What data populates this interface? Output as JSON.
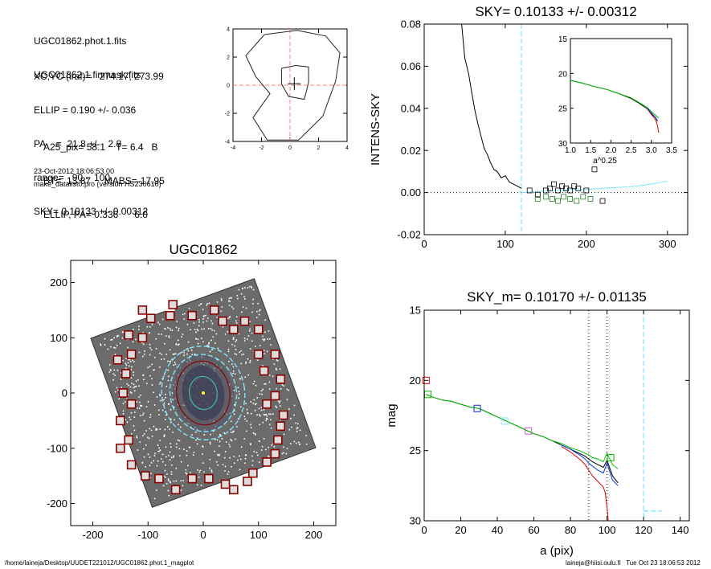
{
  "header": {
    "lines_a": [
      "UGC01862.phot.1.fits",
      "UGC01862.1.finmask.fits"
    ],
    "lines_b": [
      "XC,YC (iraf)=   274.17, 273.99",
      "ELLIP = 0.190 +/- 0.036",
      "PA    =  21.8 +/-   2.8",
      "range=   90.-  100.",
      "SKY= 0.10133 +/- 0.00312"
    ],
    "lines_c": [
      "A25_pix= 58.1    T= 6.4   B",
      "BT=  13.87     MABS=-17.95",
      "ELLIP, PA= 0.336      6.0"
    ],
    "date_line": "23-Oct-2012 18:06:53.00",
    "program_line": "make_datalist0.pro (version HS230610)"
  },
  "footer": {
    "path": "/home/laineja/Desktop/UUDET221012/UGC01862.phot.1_magplot",
    "user_time": "laineja@hiisi.oulu.fi   Tue Oct 23 18:06:53 2012"
  },
  "colors": {
    "sky_line": "#7fe6ff",
    "contour_red": "#ff8080",
    "mask_box": "#8b0000",
    "series_red": "#e00000",
    "series_blue": "#0030e0",
    "series_green": "#00c000"
  },
  "chart_data": [
    {
      "id": "contour",
      "type": "contour",
      "title": "",
      "xlim": [
        -4,
        4
      ],
      "ylim": [
        -4,
        4
      ],
      "xticks": [
        "-4",
        "-2",
        "0",
        "2",
        "4"
      ],
      "yticks": [
        "-4",
        "-2",
        "0",
        "2",
        "4"
      ],
      "contours": [
        [
          [
            -1.8,
            3.6
          ],
          [
            0.5,
            3.9
          ],
          [
            2.5,
            3.5
          ],
          [
            3.5,
            2.3
          ],
          [
            3.2,
            0.3
          ],
          [
            2.3,
            -2.2
          ],
          [
            0.6,
            -3.9
          ],
          [
            -1.6,
            -3.9
          ],
          [
            -2.6,
            -2.3
          ],
          [
            -1.4,
            -0.6
          ],
          [
            -2.4,
            0.6
          ],
          [
            -3.1,
            2.1
          ],
          [
            -1.8,
            3.6
          ]
        ],
        [
          [
            -0.6,
            1.2
          ],
          [
            0.4,
            1.4
          ],
          [
            1.3,
            1.3
          ],
          [
            1.3,
            0.2
          ],
          [
            1.0,
            -1.0
          ],
          [
            -0.1,
            -0.8
          ],
          [
            -0.6,
            0.1
          ],
          [
            -0.6,
            1.2
          ]
        ]
      ],
      "center": [
        0.3,
        0.1
      ]
    },
    {
      "id": "sky",
      "type": "line",
      "title": "SKY= 0.10133 +/- 0.00312",
      "xlabel": "",
      "ylabel": "INTENS-SKY",
      "xlim": [
        0,
        325
      ],
      "ylim": [
        -0.02,
        0.08
      ],
      "xticks": [
        "0",
        "100",
        "200",
        "300"
      ],
      "yticks": [
        "-0.02",
        "0.00",
        "0.02",
        "0.04",
        "0.06",
        "0.08"
      ],
      "sky_marker_x": 120,
      "series": [
        {
          "color": "#000000",
          "x": [
            45,
            50,
            55,
            58,
            62,
            66,
            70,
            74,
            78,
            82,
            86,
            90,
            95,
            100,
            105,
            110,
            115,
            120
          ],
          "y": [
            0.085,
            0.064,
            0.056,
            0.049,
            0.04,
            0.033,
            0.027,
            0.021,
            0.018,
            0.014,
            0.011,
            0.01,
            0.007,
            0.008,
            0.005,
            0.004,
            0.003,
            0.002
          ]
        },
        {
          "color": "#7fe6ff",
          "x": [
            120,
            140,
            160,
            180,
            200,
            220,
            240,
            260,
            280,
            300
          ],
          "y": [
            0,
            0.0005,
            0.001,
            0.0015,
            0.0015,
            0.002,
            0.0025,
            0.003,
            0.004,
            0.0055
          ]
        }
      ],
      "points_black": [
        [
          130,
          0.001
        ],
        [
          140,
          -0.001
        ],
        [
          150,
          0.001
        ],
        [
          155,
          0.002
        ],
        [
          160,
          0.004
        ],
        [
          165,
          0.001
        ],
        [
          170,
          0.003
        ],
        [
          175,
          0.002
        ],
        [
          180,
          0.001
        ],
        [
          185,
          0.003
        ],
        [
          190,
          0.002
        ],
        [
          200,
          0.001
        ],
        [
          210,
          0.011
        ],
        [
          220,
          -0.004
        ]
      ],
      "points_green": [
        [
          140,
          -0.003
        ],
        [
          150,
          -0.002
        ],
        [
          158,
          -0.003
        ],
        [
          165,
          -0.004
        ],
        [
          172,
          -0.002
        ],
        [
          180,
          -0.003
        ],
        [
          188,
          -0.004
        ],
        [
          196,
          -0.002
        ],
        [
          205,
          -0.003
        ]
      ],
      "inset": {
        "xlabel": "a^0.25",
        "xlim": [
          1.0,
          3.5
        ],
        "ylim": [
          15,
          30
        ],
        "xticks": [
          "1.0",
          "1.5",
          "2.0",
          "2.5",
          "3.0",
          "3.5"
        ],
        "yticks": [
          "15",
          "20",
          "25",
          "30"
        ],
        "series": [
          {
            "color": "#000000",
            "x": [
              1.0,
              1.3,
              1.6,
              1.9,
              2.2,
              2.5,
              2.7,
              2.9,
              3.0,
              3.1,
              3.15
            ],
            "y": [
              21,
              21.4,
              21.9,
              22.3,
              22.9,
              23.6,
              24.3,
              25.1,
              25.8,
              26.3,
              26.8
            ]
          },
          {
            "color": "#00c000",
            "x": [
              1.0,
              1.3,
              1.6,
              1.9,
              2.2,
              2.5,
              2.7,
              2.9,
              3.0,
              3.1,
              3.18
            ],
            "y": [
              21,
              21.4,
              21.9,
              22.3,
              22.9,
              23.5,
              24.2,
              24.9,
              25.5,
              26.0,
              26.4
            ]
          },
          {
            "color": "#e00000",
            "x": [
              2.9,
              3.0,
              3.1,
              3.15,
              3.18
            ],
            "y": [
              25.1,
              25.9,
              26.6,
              27.5,
              28.5
            ]
          },
          {
            "color": "#0030e0",
            "x": [
              2.9,
              3.0,
              3.1,
              3.15
            ],
            "y": [
              25.0,
              25.7,
              26.3,
              26.9
            ]
          }
        ]
      }
    },
    {
      "id": "image",
      "type": "image",
      "title": "UGC01862",
      "xlim": [
        -240,
        240
      ],
      "ylim": [
        -240,
        240
      ],
      "xticks": [
        "-200",
        "-100",
        "0",
        "100",
        "200"
      ],
      "yticks": [
        "-200",
        "-100",
        "0",
        "100",
        "200"
      ],
      "ellipses": [
        {
          "a": 30,
          "b": 25,
          "color": "#40c0a0"
        },
        {
          "a": 58,
          "b": 48,
          "color": "#8b0000"
        },
        {
          "a": 70,
          "b": 60,
          "color": "#7fe6ff",
          "dash": true
        },
        {
          "a": 85,
          "b": 75,
          "color": "#7fe6ff",
          "dash": true
        }
      ],
      "mask_boxes": [
        [
          -110,
          150
        ],
        [
          -95,
          135
        ],
        [
          -55,
          160
        ],
        [
          -60,
          140
        ],
        [
          -20,
          140
        ],
        [
          20,
          150
        ],
        [
          35,
          130
        ],
        [
          75,
          130
        ],
        [
          55,
          115
        ],
        [
          -135,
          105
        ],
        [
          -110,
          100
        ],
        [
          -155,
          60
        ],
        [
          -130,
          70
        ],
        [
          -140,
          35
        ],
        [
          -145,
          0
        ],
        [
          -130,
          -20
        ],
        [
          -150,
          -50
        ],
        [
          -135,
          -85
        ],
        [
          -150,
          -100
        ],
        [
          -130,
          -130
        ],
        [
          -105,
          -150
        ],
        [
          -80,
          -155
        ],
        [
          -50,
          -175
        ],
        [
          -20,
          -155
        ],
        [
          10,
          -155
        ],
        [
          40,
          -165
        ],
        [
          55,
          -175
        ],
        [
          80,
          -160
        ],
        [
          90,
          -145
        ],
        [
          115,
          -125
        ],
        [
          130,
          -110
        ],
        [
          135,
          -85
        ],
        [
          140,
          -60
        ],
        [
          145,
          -40
        ],
        [
          130,
          -5
        ],
        [
          140,
          25
        ],
        [
          115,
          -20
        ],
        [
          110,
          40
        ],
        [
          100,
          70
        ],
        [
          130,
          70
        ],
        [
          100,
          115
        ]
      ]
    },
    {
      "id": "mag",
      "type": "line",
      "title": "SKY_m=  0.10170 +/- 0.01135",
      "xlabel": "a (pix)",
      "ylabel": "mag",
      "xlim": [
        0,
        145
      ],
      "ylim": [
        30,
        15
      ],
      "xticks": [
        "0",
        "20",
        "40",
        "60",
        "80",
        "100",
        "120",
        "140"
      ],
      "yticks": [
        "15",
        "20",
        "25",
        "30"
      ],
      "range_lines_x": [
        90,
        100
      ],
      "sky_marker_x": 120,
      "series": [
        {
          "color": "#000000",
          "x": [
            1,
            5,
            10,
            15,
            20,
            25,
            30,
            35,
            40,
            45,
            50,
            55,
            60,
            65,
            70,
            75,
            80,
            85,
            88,
            90,
            92,
            95,
            98,
            100,
            103,
            106
          ],
          "y": [
            21,
            21.2,
            21.4,
            21.5,
            21.7,
            21.9,
            22.0,
            22.3,
            22.6,
            22.9,
            23.2,
            23.5,
            23.8,
            24.0,
            24.3,
            24.6,
            24.9,
            25.2,
            25.4,
            25.6,
            25.8,
            26.0,
            26.2,
            25.7,
            26.8,
            27.3
          ]
        },
        {
          "color": "#00c000",
          "x": [
            1,
            5,
            10,
            15,
            20,
            25,
            30,
            35,
            40,
            45,
            50,
            55,
            60,
            65,
            70,
            75,
            80,
            85,
            88,
            90,
            92,
            95,
            98,
            100,
            103,
            106
          ],
          "y": [
            21,
            21.2,
            21.4,
            21.5,
            21.7,
            21.9,
            22.0,
            22.3,
            22.6,
            22.9,
            23.2,
            23.5,
            23.8,
            24.0,
            24.3,
            24.5,
            24.8,
            25.0,
            25.2,
            25.3,
            25.5,
            25.6,
            25.8,
            25.2,
            26.0,
            26.3
          ]
        },
        {
          "color": "#0030e0",
          "x": [
            75,
            80,
            85,
            88,
            90,
            92,
            95,
            98,
            100,
            103,
            106
          ],
          "y": [
            24.6,
            24.9,
            25.3,
            25.6,
            25.9,
            26.1,
            26.4,
            26.6,
            25.9,
            27.1,
            27.5
          ]
        },
        {
          "color": "#e00000",
          "x": [
            75,
            80,
            85,
            88,
            90,
            92,
            95,
            98,
            99,
            100,
            101
          ],
          "y": [
            24.7,
            25.1,
            25.6,
            26.0,
            26.4,
            26.8,
            27.2,
            27.6,
            28.0,
            29.0,
            30.5
          ]
        }
      ],
      "squares": [
        {
          "x": 1,
          "y": 20.0,
          "color": "#e00000"
        },
        {
          "x": 2,
          "y": 21.0,
          "color": "#00c000"
        },
        {
          "x": 29,
          "y": 22.0,
          "color": "#0030e0"
        },
        {
          "x": 44,
          "y": 22.9,
          "color": "#7fe6ff"
        },
        {
          "x": 57,
          "y": 23.6,
          "color": "#c060c0"
        },
        {
          "x": 102,
          "y": 25.5,
          "color": "#00c000"
        }
      ]
    }
  ]
}
